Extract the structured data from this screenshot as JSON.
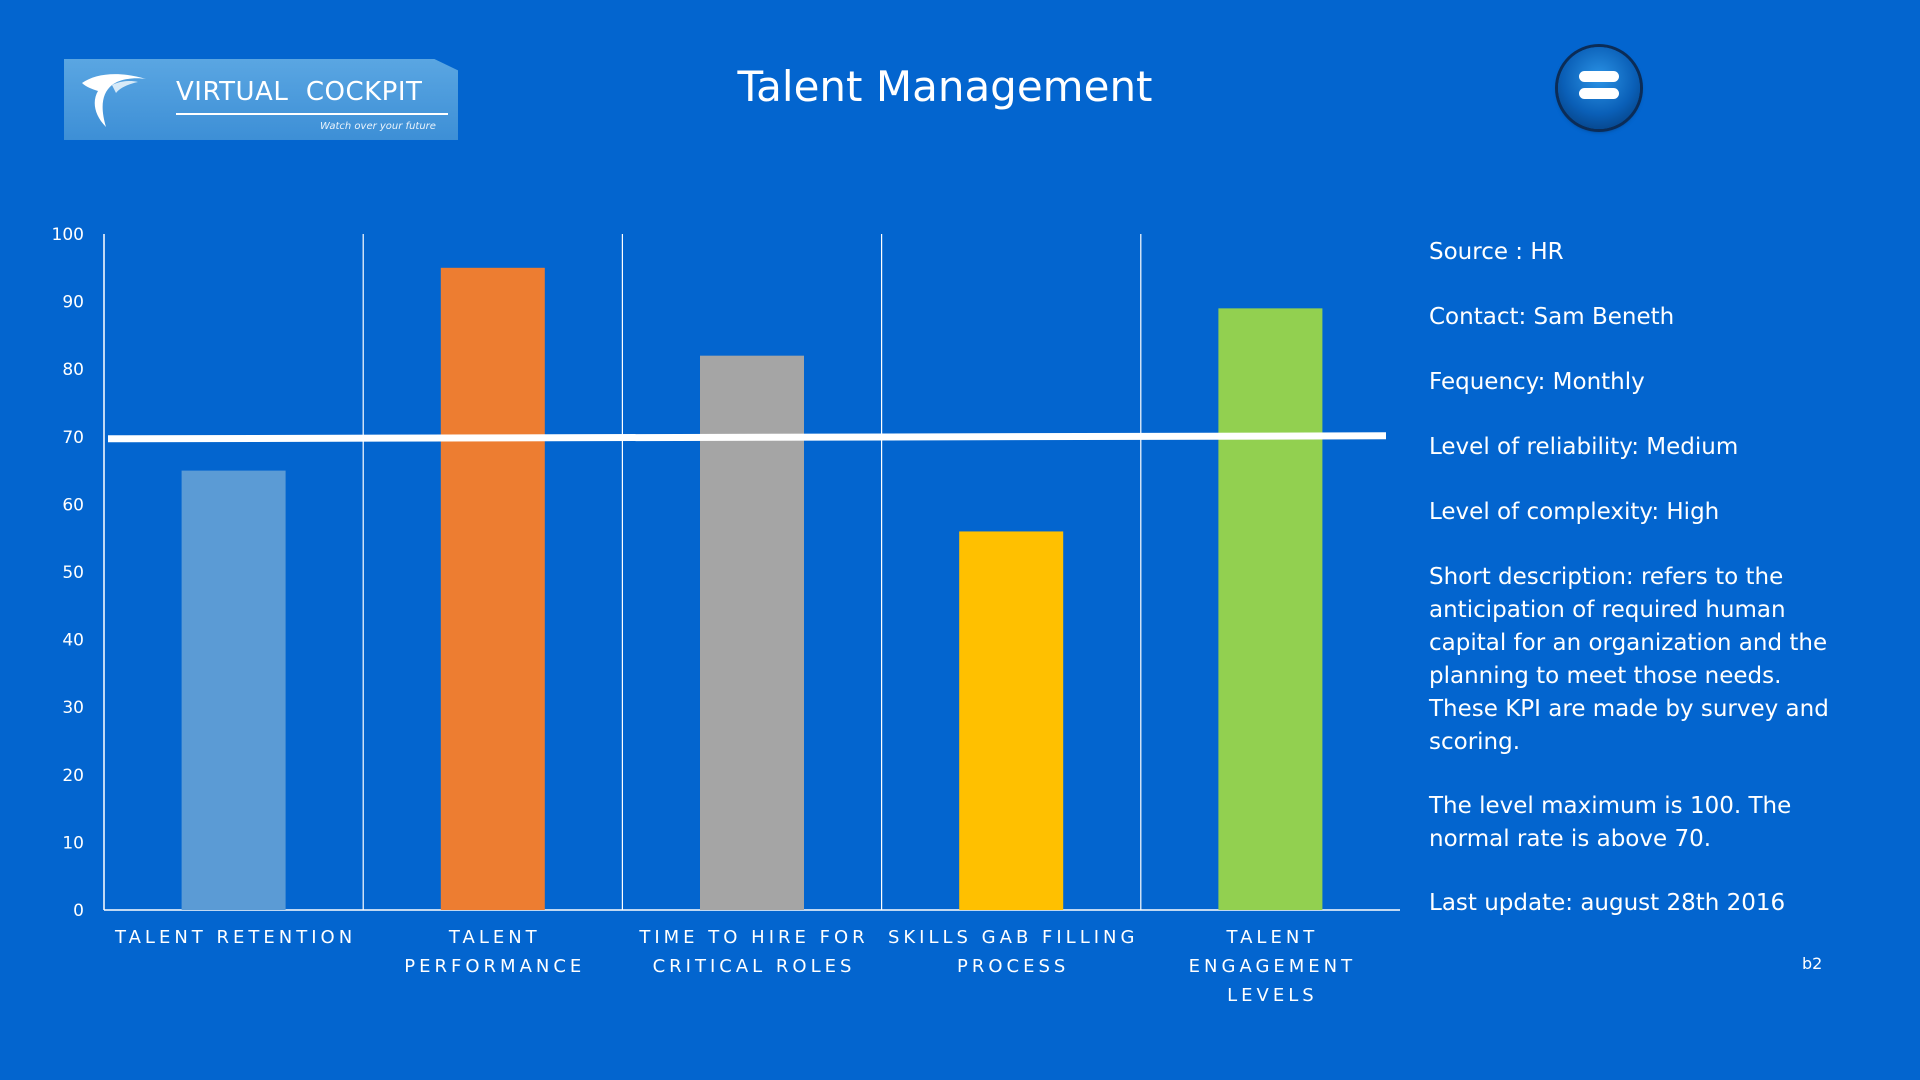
{
  "header": {
    "logo": {
      "brand_left": "VIRTUAL",
      "brand_right": "COCKPIT",
      "tagline": "Watch over your future"
    },
    "title": "Talent Management",
    "menu_icon": "menu-icon"
  },
  "info_panel": {
    "source": "Source : HR",
    "contact": "Contact: Sam Beneth",
    "frequency": "Fequency: Monthly",
    "reliability": "Level of reliability: Medium",
    "complexity": "Level of complexity:  High",
    "description": "Short description: refers to the anticipation of required human capital for an organization and the planning to meet those needs. These KPI are made by survey and scoring.",
    "level_note": "The level maximum is 100. The normal rate is above 70.",
    "last_update": "Last update:  august 28th  2016"
  },
  "slide_code": "b2",
  "chart_data": {
    "type": "bar",
    "categories": [
      [
        "TALENT  RETENTION"
      ],
      [
        "TALENT",
        "PERFORMANCE"
      ],
      [
        "TIME TO HIRE FOR",
        "CRITICAL ROLES"
      ],
      [
        "SKILLS GAB FILLING",
        "PROCESS"
      ],
      [
        "TALENT",
        "ENGAGEMENT",
        "LEVELS"
      ]
    ],
    "values": [
      65,
      95,
      82,
      56,
      89
    ],
    "colors": [
      "#5b9bd5",
      "#ed7d31",
      "#a5a5a5",
      "#ffc000",
      "#92d050"
    ],
    "threshold": 70,
    "threshold_color": "#ffffff",
    "ylim": [
      0,
      100
    ],
    "yticks": [
      0,
      10,
      20,
      30,
      40,
      50,
      60,
      70,
      80,
      90,
      100
    ],
    "grid": "vertical category separators",
    "legend": "none"
  }
}
